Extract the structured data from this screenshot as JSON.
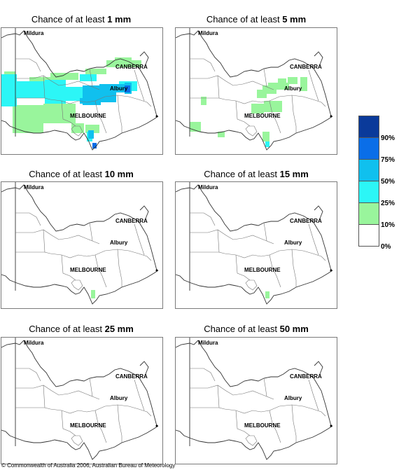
{
  "panels": [
    {
      "prefix": "Chance of at least ",
      "amount": "1 mm",
      "id": "1mm"
    },
    {
      "prefix": "Chance of at least ",
      "amount": "5 mm",
      "id": "5mm"
    },
    {
      "prefix": "Chance of at least ",
      "amount": "10 mm",
      "id": "10mm"
    },
    {
      "prefix": "Chance of at least ",
      "amount": "15 mm",
      "id": "15mm"
    },
    {
      "prefix": "Chance of at least ",
      "amount": "25 mm",
      "id": "25mm"
    },
    {
      "prefix": "Chance of at least ",
      "amount": "50 mm",
      "id": "50mm"
    }
  ],
  "cities": {
    "mildura": "Mildura",
    "canberra": "CANBERRA",
    "albury": "Albury",
    "melbourne": "MELBOURNE"
  },
  "legend": {
    "colors": [
      "#0a3a9a",
      "#0a6ee8",
      "#10c0ee",
      "#2cf6f6",
      "#99f59c",
      "#ffffff"
    ],
    "labels": [
      "90%",
      "75%",
      "50%",
      "25%",
      "10%",
      "0%"
    ]
  },
  "colors": {
    "c10": "#99f59c",
    "c25": "#2cf6f6",
    "c50": "#10c0ee",
    "c75": "#0a6ee8"
  },
  "credit": "© Commonwealth of Australia 2006, Australian Bureau of Meteorology"
}
